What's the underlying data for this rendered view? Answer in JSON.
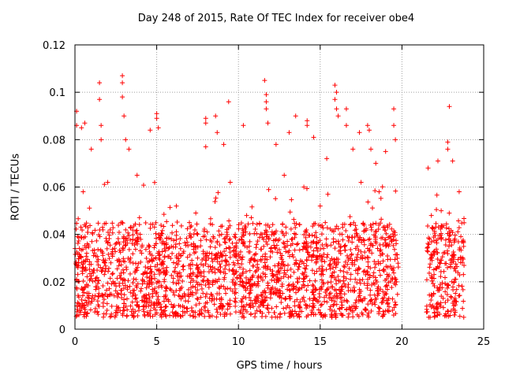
{
  "chart_data": {
    "type": "scatter",
    "title": "Day 248 of 2015, Rate Of TEC Index for receiver obe4",
    "xlabel": "GPS time / hours",
    "ylabel": "ROTI / TECUs",
    "xlim": [
      0,
      25
    ],
    "ylim": [
      0,
      0.12
    ],
    "x_ticks": [
      0,
      5,
      10,
      15,
      20,
      25
    ],
    "y_ticks": [
      0,
      0.02,
      0.04,
      0.06,
      0.08,
      0.1,
      0.12
    ],
    "x_tick_labels": [
      "0",
      "5",
      "10",
      "15",
      "20",
      "25"
    ],
    "y_tick_labels": [
      "0",
      "0.02",
      "0.04",
      "0.06",
      "0.08",
      "0.1",
      "0.12"
    ],
    "grid": true,
    "marker": "+",
    "color": "#ff0000",
    "data_gap_hours": [
      19.8,
      21.5
    ],
    "series": [
      {
        "x_range": [
          0,
          23.8
        ],
        "typical_range": [
          0.005,
          0.045
        ],
        "points": [
          [
            0.1,
            0.092
          ],
          [
            0.1,
            0.086
          ],
          [
            0.4,
            0.085
          ],
          [
            0.6,
            0.087
          ],
          [
            1.0,
            0.076
          ],
          [
            1.5,
            0.104
          ],
          [
            1.5,
            0.097
          ],
          [
            1.6,
            0.086
          ],
          [
            1.6,
            0.08
          ],
          [
            2.9,
            0.107
          ],
          [
            2.9,
            0.104
          ],
          [
            2.9,
            0.098
          ],
          [
            3.0,
            0.09
          ],
          [
            3.1,
            0.08
          ],
          [
            3.3,
            0.076
          ],
          [
            4.6,
            0.084
          ],
          [
            5.0,
            0.091
          ],
          [
            5.0,
            0.089
          ],
          [
            5.1,
            0.085
          ],
          [
            7.5,
            0.03
          ],
          [
            8.0,
            0.089
          ],
          [
            8.0,
            0.087
          ],
          [
            8.0,
            0.077
          ],
          [
            8.6,
            0.09
          ],
          [
            8.7,
            0.083
          ],
          [
            9.1,
            0.078
          ],
          [
            9.4,
            0.096
          ],
          [
            10.3,
            0.086
          ],
          [
            11.6,
            0.105
          ],
          [
            11.7,
            0.099
          ],
          [
            11.7,
            0.096
          ],
          [
            11.7,
            0.093
          ],
          [
            11.8,
            0.087
          ],
          [
            12.3,
            0.078
          ],
          [
            13.1,
            0.083
          ],
          [
            13.5,
            0.09
          ],
          [
            14.2,
            0.088
          ],
          [
            14.2,
            0.086
          ],
          [
            14.6,
            0.081
          ],
          [
            15.4,
            0.072
          ],
          [
            15.9,
            0.103
          ],
          [
            16.0,
            0.1
          ],
          [
            15.9,
            0.097
          ],
          [
            16.0,
            0.093
          ],
          [
            16.1,
            0.09
          ],
          [
            16.6,
            0.093
          ],
          [
            16.6,
            0.086
          ],
          [
            17.0,
            0.076
          ],
          [
            17.4,
            0.083
          ],
          [
            17.9,
            0.086
          ],
          [
            18.0,
            0.084
          ],
          [
            18.1,
            0.076
          ],
          [
            18.4,
            0.07
          ],
          [
            19.5,
            0.093
          ],
          [
            19.5,
            0.086
          ],
          [
            19.6,
            0.08
          ],
          [
            19.0,
            0.075
          ],
          [
            21.6,
            0.068
          ],
          [
            22.2,
            0.071
          ],
          [
            22.8,
            0.079
          ],
          [
            22.8,
            0.076
          ],
          [
            22.9,
            0.094
          ],
          [
            23.1,
            0.071
          ],
          [
            23.5,
            0.058
          ],
          [
            0.5,
            0.058
          ],
          [
            2.0,
            0.062
          ],
          [
            3.8,
            0.065
          ],
          [
            6.2,
            0.052
          ],
          [
            7.0,
            0.045
          ],
          [
            9.5,
            0.062
          ],
          [
            10.5,
            0.048
          ],
          [
            12.8,
            0.065
          ],
          [
            14.0,
            0.06
          ],
          [
            15.0,
            0.052
          ],
          [
            17.5,
            0.062
          ],
          [
            18.6,
            0.058
          ],
          [
            21.8,
            0.048
          ],
          [
            22.4,
            0.05
          ]
        ]
      }
    ]
  }
}
